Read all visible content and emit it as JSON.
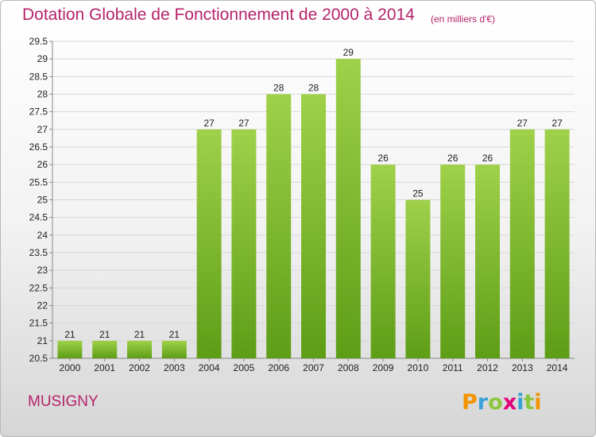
{
  "title": "Dotation Globale de Fonctionnement de 2000 à 2014",
  "subtitle": "(en milliers d'€)",
  "place": "MUSIGNY",
  "brand": {
    "letters": [
      {
        "ch": "P",
        "color": "#f29400"
      },
      {
        "ch": "r",
        "color": "#3aa0d8"
      },
      {
        "ch": "o",
        "color": "#8cc63f"
      },
      {
        "ch": "x",
        "color": "#e4007c"
      },
      {
        "ch": "i",
        "color": "#3aa0d8"
      },
      {
        "ch": "t",
        "color": "#8cc63f"
      },
      {
        "ch": "i",
        "color": "#f29400"
      }
    ]
  },
  "colors": {
    "bar_light": "#9fd14a",
    "bar_dark": "#5e9d16",
    "grid": "#d8d8d8",
    "text": "#222222",
    "accent": "#b5236b"
  },
  "chart_data": {
    "type": "bar",
    "title": "Dotation Globale de Fonctionnement de 2000 à 2014",
    "xlabel": "",
    "ylabel": "",
    "categories": [
      "2000",
      "2001",
      "2002",
      "2003",
      "2004",
      "2005",
      "2006",
      "2007",
      "2008",
      "2009",
      "2010",
      "2011",
      "2012",
      "2013",
      "2014"
    ],
    "values": [
      21,
      21,
      21,
      21,
      27,
      27,
      28,
      28,
      29,
      26,
      25,
      26,
      26,
      27,
      27
    ],
    "ylim": [
      20.5,
      29.5
    ],
    "yticks": [
      "20.5",
      "21",
      "21.5",
      "22",
      "22.5",
      "23",
      "23.5",
      "24",
      "24.5",
      "25",
      "25.5",
      "26",
      "26.5",
      "27",
      "27.5",
      "28",
      "28.5",
      "29",
      "29.5"
    ],
    "grid": true
  }
}
